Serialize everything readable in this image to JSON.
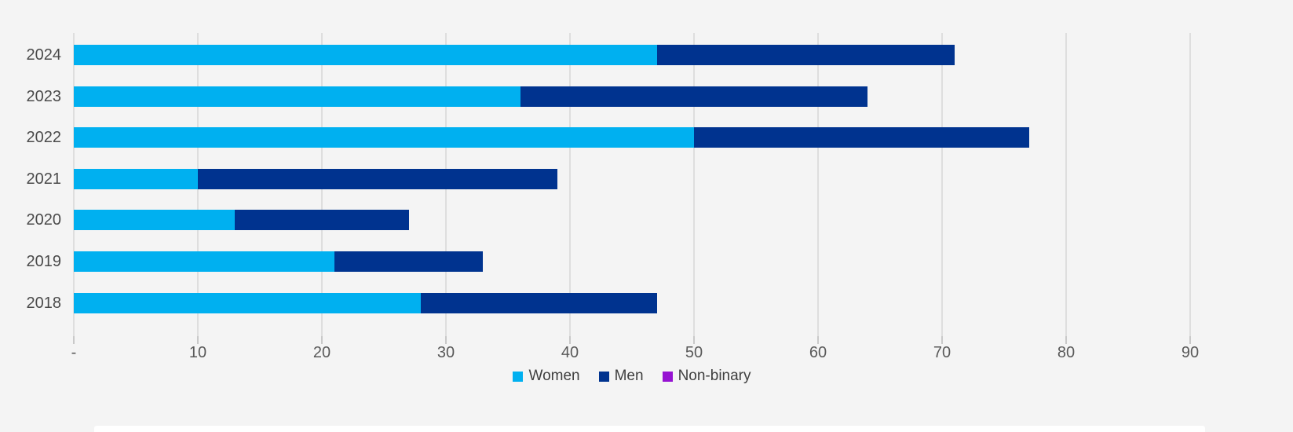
{
  "colors": {
    "background": "#f4f4f4",
    "gridline": "#dedede",
    "tick": "#c9c9c9",
    "x_axis_label": "#595959",
    "year_label": "#4a4a4a",
    "legend_label": "#3f3f3f",
    "women": "#00b0f0",
    "men": "#00338f",
    "non_binary": "#9613d2"
  },
  "chart_data": {
    "type": "bar",
    "orientation": "horizontal",
    "stacked": true,
    "title": "",
    "xlabel": "",
    "ylabel": "",
    "categories": [
      "2024",
      "2023",
      "2022",
      "2021",
      "2020",
      "2019",
      "2018"
    ],
    "series": [
      {
        "name": "Women",
        "color_key": "women",
        "values": [
          47,
          36,
          50,
          10,
          13,
          21,
          28
        ]
      },
      {
        "name": "Men",
        "color_key": "men",
        "values": [
          24,
          28,
          27,
          29,
          14,
          12,
          19
        ]
      },
      {
        "name": "Non-binary",
        "color_key": "non_binary",
        "values": [
          0,
          0,
          0,
          0,
          0,
          0,
          0
        ]
      }
    ],
    "totals": [
      71,
      64,
      77,
      39,
      27,
      33,
      47
    ],
    "x_ticks": [
      0,
      10,
      20,
      30,
      40,
      50,
      60,
      70,
      80,
      90
    ],
    "x_tick_labels": [
      "-",
      "10",
      "20",
      "30",
      "40",
      "50",
      "60",
      "70",
      "80",
      "90"
    ],
    "xlim": [
      0,
      96
    ],
    "grid": "vertical",
    "legend_position": "bottom-center"
  }
}
